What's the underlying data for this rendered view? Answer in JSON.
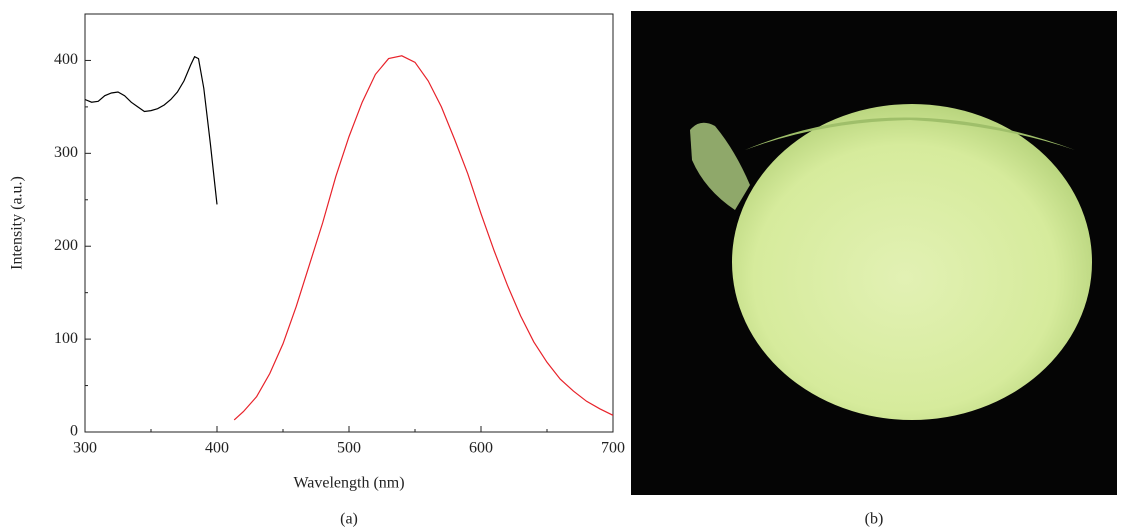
{
  "chart_data": {
    "type": "line",
    "xlabel": "Wavelength (nm)",
    "ylabel": "Intensity (a.u.)",
    "xlim": [
      300,
      700
    ],
    "xticks": [
      300,
      400,
      500,
      600,
      700
    ],
    "xminorticks": [
      350,
      450,
      550,
      650
    ],
    "ylim": [
      0,
      450
    ],
    "yticks": [
      0,
      100,
      200,
      300,
      400
    ],
    "yminorticks": [
      50,
      150,
      250,
      350
    ],
    "series": [
      {
        "color": "#000000",
        "x": [
          300,
          305,
          310,
          315,
          320,
          325,
          330,
          335,
          340,
          345,
          350,
          355,
          360,
          365,
          370,
          375,
          380,
          383,
          386,
          390,
          395,
          400
        ],
        "y": [
          358,
          355,
          356,
          362,
          365,
          366,
          362,
          355,
          350,
          345,
          346,
          348,
          352,
          358,
          366,
          378,
          395,
          404,
          402,
          370,
          310,
          245
        ]
      },
      {
        "color": "#e8222a",
        "x": [
          413,
          420,
          430,
          440,
          450,
          460,
          470,
          480,
          490,
          500,
          510,
          520,
          530,
          540,
          550,
          560,
          570,
          580,
          590,
          600,
          610,
          620,
          630,
          640,
          650,
          660,
          670,
          680,
          690,
          700
        ],
        "y": [
          13,
          22,
          38,
          63,
          95,
          135,
          180,
          225,
          275,
          318,
          355,
          385,
          402,
          405,
          398,
          378,
          350,
          315,
          278,
          235,
          195,
          158,
          125,
          97,
          75,
          57,
          44,
          33,
          25,
          18
        ]
      }
    ]
  },
  "panel_labels": [
    "(a)",
    "(b)"
  ]
}
